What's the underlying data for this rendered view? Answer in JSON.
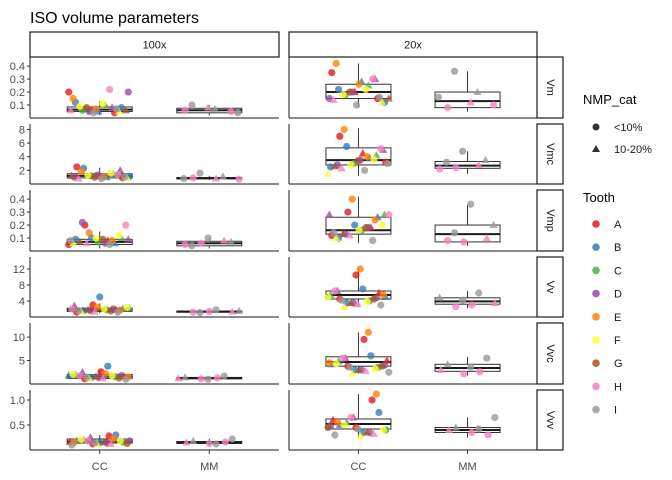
{
  "chart_data": {
    "type": "box",
    "title": "ISO volume parameters",
    "xlabel": "",
    "ylabel": "",
    "categories": [
      "CC",
      "MM"
    ],
    "col_facets": [
      "100x",
      "20x"
    ],
    "row_facets": [
      {
        "label": "Vm",
        "ylim": [
          0,
          0.47
        ],
        "ticks": [
          0.1,
          0.2,
          0.3,
          0.4
        ],
        "tick_labels": [
          "0.1",
          "0.2",
          "0.3",
          "0.4"
        ]
      },
      {
        "label": "Vmc",
        "ylim": [
          0,
          8.8
        ],
        "ticks": [
          2,
          4,
          6,
          8
        ],
        "tick_labels": [
          "2",
          "4",
          "6",
          "8"
        ]
      },
      {
        "label": "Vmp",
        "ylim": [
          0,
          0.47
        ],
        "ticks": [
          0.1,
          0.2,
          0.3,
          0.4
        ],
        "tick_labels": [
          "0.1",
          "0.2",
          "0.3",
          "0.4"
        ]
      },
      {
        "label": "Vv",
        "ylim": [
          0,
          15
        ],
        "ticks": [
          4,
          8,
          12
        ],
        "tick_labels": [
          "4",
          "8",
          "12"
        ]
      },
      {
        "label": "Vvc",
        "ylim": [
          0,
          13
        ],
        "ticks": [
          5,
          10
        ],
        "tick_labels": [
          "5",
          "10"
        ]
      },
      {
        "label": "Vvv",
        "ylim": [
          0,
          1.2
        ],
        "ticks": [
          0.5,
          1.0
        ],
        "tick_labels": [
          "0.5",
          "1.0"
        ]
      }
    ],
    "boxes": [
      {
        "row": "Vm",
        "col": "100x",
        "cat": "CC",
        "q1": 0.05,
        "median": 0.065,
        "q3": 0.085,
        "lo": 0.02,
        "hi": 0.13
      },
      {
        "row": "Vm",
        "col": "100x",
        "cat": "MM",
        "q1": 0.04,
        "median": 0.06,
        "q3": 0.075,
        "lo": 0.02,
        "hi": 0.1
      },
      {
        "row": "Vm",
        "col": "20x",
        "cat": "CC",
        "q1": 0.15,
        "median": 0.2,
        "q3": 0.26,
        "lo": 0.08,
        "hi": 0.42
      },
      {
        "row": "Vm",
        "col": "20x",
        "cat": "MM",
        "q1": 0.08,
        "median": 0.13,
        "q3": 0.2,
        "lo": 0.05,
        "hi": 0.36
      },
      {
        "row": "Vmc",
        "col": "100x",
        "cat": "CC",
        "q1": 0.9,
        "median": 1.2,
        "q3": 1.5,
        "lo": 0.6,
        "hi": 2.4
      },
      {
        "row": "Vmc",
        "col": "100x",
        "cat": "MM",
        "q1": 0.75,
        "median": 0.85,
        "q3": 0.95,
        "lo": 0.6,
        "hi": 1.2
      },
      {
        "row": "Vmc",
        "col": "20x",
        "cat": "CC",
        "q1": 2.8,
        "median": 3.5,
        "q3": 5.3,
        "lo": 1.2,
        "hi": 8.2
      },
      {
        "row": "Vmc",
        "col": "20x",
        "cat": "MM",
        "q1": 2.3,
        "median": 2.7,
        "q3": 3.3,
        "lo": 1.5,
        "hi": 4.8
      },
      {
        "row": "Vmp",
        "col": "100x",
        "cat": "CC",
        "q1": 0.05,
        "median": 0.07,
        "q3": 0.09,
        "lo": 0.02,
        "hi": 0.15
      },
      {
        "row": "Vmp",
        "col": "100x",
        "cat": "MM",
        "q1": 0.04,
        "median": 0.06,
        "q3": 0.075,
        "lo": 0.02,
        "hi": 0.1
      },
      {
        "row": "Vmp",
        "col": "20x",
        "cat": "CC",
        "q1": 0.13,
        "median": 0.16,
        "q3": 0.26,
        "lo": 0.06,
        "hi": 0.42
      },
      {
        "row": "Vmp",
        "col": "20x",
        "cat": "MM",
        "q1": 0.07,
        "median": 0.13,
        "q3": 0.2,
        "lo": 0.04,
        "hi": 0.36
      },
      {
        "row": "Vv",
        "col": "100x",
        "cat": "CC",
        "q1": 1.4,
        "median": 1.8,
        "q3": 2.2,
        "lo": 0.9,
        "hi": 3.4
      },
      {
        "row": "Vv",
        "col": "100x",
        "cat": "MM",
        "q1": 1.2,
        "median": 1.35,
        "q3": 1.5,
        "lo": 0.9,
        "hi": 1.8
      },
      {
        "row": "Vv",
        "col": "20x",
        "cat": "CC",
        "q1": 4.5,
        "median": 5.5,
        "q3": 6.5,
        "lo": 2.5,
        "hi": 12.0
      },
      {
        "row": "Vv",
        "col": "20x",
        "cat": "MM",
        "q1": 3.2,
        "median": 3.9,
        "q3": 4.8,
        "lo": 2.2,
        "hi": 6.5
      },
      {
        "row": "Vvc",
        "col": "100x",
        "cat": "CC",
        "q1": 1.2,
        "median": 1.6,
        "q3": 2.0,
        "lo": 0.8,
        "hi": 3.0
      },
      {
        "row": "Vvc",
        "col": "100x",
        "cat": "MM",
        "q1": 1.1,
        "median": 1.25,
        "q3": 1.4,
        "lo": 0.8,
        "hi": 1.7
      },
      {
        "row": "Vvc",
        "col": "20x",
        "cat": "CC",
        "q1": 3.8,
        "median": 4.7,
        "q3": 5.8,
        "lo": 2.2,
        "hi": 11.0
      },
      {
        "row": "Vvc",
        "col": "20x",
        "cat": "MM",
        "q1": 2.7,
        "median": 3.4,
        "q3": 4.2,
        "lo": 1.8,
        "hi": 5.8
      },
      {
        "row": "Vvv",
        "col": "100x",
        "cat": "CC",
        "q1": 0.14,
        "median": 0.17,
        "q3": 0.22,
        "lo": 0.08,
        "hi": 0.3
      },
      {
        "row": "Vvv",
        "col": "100x",
        "cat": "MM",
        "q1": 0.13,
        "median": 0.15,
        "q3": 0.17,
        "lo": 0.08,
        "hi": 0.22
      },
      {
        "row": "Vvv",
        "col": "20x",
        "cat": "CC",
        "q1": 0.42,
        "median": 0.52,
        "q3": 0.62,
        "lo": 0.25,
        "hi": 1.12
      },
      {
        "row": "Vvv",
        "col": "20x",
        "cat": "MM",
        "q1": 0.35,
        "median": 0.4,
        "q3": 0.45,
        "lo": 0.25,
        "hi": 0.65
      }
    ],
    "points_by_tooth": {
      "CC": {
        "100x": {
          "Vm": {
            "A": [
              0.2,
              0.06,
              0.04
            ],
            "B": [
              0.12,
              0.05,
              0.08
            ],
            "C": [
              0.06,
              0.1
            ],
            "D": [
              0.2,
              0.05,
              0.08
            ],
            "E": [
              0.15,
              0.07
            ],
            "F": [
              0.05,
              0.09,
              0.11
            ],
            "G": [
              0.06,
              0.08
            ],
            "H": [
              0.22,
              0.06
            ],
            "I": [
              0.04,
              0.07
            ]
          },
          "Vmc": {
            "A": [
              2.5,
              1.2,
              0.9
            ],
            "B": [
              2.3,
              1.0,
              1.1
            ],
            "C": [
              1.2,
              1.5
            ],
            "D": [
              1.0,
              1.3,
              2.0
            ],
            "E": [
              1.8,
              1.1
            ],
            "F": [
              0.9,
              1.3,
              1.6
            ],
            "G": [
              1.2,
              1.0
            ],
            "H": [
              1.4,
              0.8
            ],
            "I": [
              0.8,
              1.0
            ]
          },
          "Vmp": {
            "A": [
              0.2,
              0.08,
              0.05
            ],
            "B": [
              0.1,
              0.06,
              0.09
            ],
            "C": [
              0.07,
              0.1
            ],
            "D": [
              0.22,
              0.06,
              0.09
            ],
            "E": [
              0.14,
              0.08
            ],
            "F": [
              0.06,
              0.1,
              0.12
            ],
            "G": [
              0.07,
              0.09
            ],
            "H": [
              0.2,
              0.06
            ],
            "I": [
              0.05,
              0.08
            ]
          },
          "Vv": {
            "A": [
              3.0,
              1.8,
              1.2
            ],
            "B": [
              5.0,
              2.0,
              1.6
            ],
            "C": [
              1.8,
              2.2
            ],
            "D": [
              1.6,
              2.0,
              2.8
            ],
            "E": [
              2.5,
              1.7
            ],
            "F": [
              1.4,
              2.0,
              2.4
            ],
            "G": [
              1.8,
              1.5
            ],
            "H": [
              2.0,
              1.3
            ],
            "I": [
              1.2,
              1.6
            ]
          },
          "Vvc": {
            "A": [
              2.6,
              1.6,
              1.1
            ],
            "B": [
              3.8,
              1.8,
              1.4
            ],
            "C": [
              1.6,
              2.0
            ],
            "D": [
              1.4,
              1.8,
              2.5
            ],
            "E": [
              2.2,
              1.5
            ],
            "F": [
              1.2,
              1.8,
              2.1
            ],
            "G": [
              1.6,
              1.3
            ],
            "H": [
              1.8,
              1.2
            ],
            "I": [
              1.0,
              1.4
            ]
          },
          "Vvv": {
            "A": [
              0.28,
              0.16,
              0.12
            ],
            "B": [
              0.3,
              0.18,
              0.14
            ],
            "C": [
              0.16,
              0.2
            ],
            "D": [
              0.14,
              0.18,
              0.25
            ],
            "E": [
              0.22,
              0.15
            ],
            "F": [
              0.12,
              0.18,
              0.21
            ],
            "G": [
              0.16,
              0.13
            ],
            "H": [
              0.18,
              0.12
            ],
            "I": [
              0.1,
              0.14
            ]
          }
        },
        "20x": {
          "Vm": {
            "A": [
              0.35,
              0.2,
              0.15
            ],
            "B": [
              0.22,
              0.28,
              0.12
            ],
            "C": [
              0.18,
              0.25
            ],
            "D": [
              0.15,
              0.2,
              0.3
            ],
            "E": [
              0.42,
              0.26
            ],
            "F": [
              0.12,
              0.18,
              0.22
            ],
            "G": [
              0.15,
              0.2
            ],
            "H": [
              0.3,
              0.14
            ],
            "I": [
              0.1,
              0.16
            ]
          },
          "Vmc": {
            "A": [
              7.0,
              4.5,
              3.2
            ],
            "B": [
              5.5,
              3.8,
              2.5
            ],
            "C": [
              3.0,
              4.2
            ],
            "D": [
              2.8,
              3.5,
              5.0
            ],
            "E": [
              8.0,
              4.0
            ],
            "F": [
              1.5,
              2.8,
              3.6
            ],
            "G": [
              2.6,
              3.4
            ],
            "H": [
              5.2,
              2.3
            ],
            "I": [
              2.0,
              3.0
            ]
          },
          "Vmp": {
            "A": [
              0.3,
              0.18,
              0.12
            ],
            "B": [
              0.2,
              0.26,
              0.1
            ],
            "C": [
              0.16,
              0.28
            ],
            "D": [
              0.13,
              0.18,
              0.28
            ],
            "E": [
              0.4,
              0.24
            ],
            "F": [
              0.1,
              0.16,
              0.2
            ],
            "G": [
              0.13,
              0.18
            ],
            "H": [
              0.28,
              0.12
            ],
            "I": [
              0.08,
              0.14
            ]
          },
          "Vv": {
            "A": [
              10.5,
              6.0,
              4.5
            ],
            "B": [
              7.0,
              5.0,
              3.5
            ],
            "C": [
              4.0,
              5.5
            ],
            "D": [
              3.5,
              4.8,
              6.5
            ],
            "E": [
              12.0,
              5.5
            ],
            "F": [
              2.5,
              3.8,
              5.0
            ],
            "G": [
              3.5,
              4.5
            ],
            "H": [
              6.5,
              3.2
            ],
            "I": [
              3.0,
              4.2
            ]
          },
          "Vvc": {
            "A": [
              9.5,
              5.0,
              3.8
            ],
            "B": [
              6.0,
              4.2,
              3.0
            ],
            "C": [
              3.5,
              4.8
            ],
            "D": [
              3.0,
              4.0,
              5.5
            ],
            "E": [
              11.0,
              4.5
            ],
            "F": [
              2.2,
              3.2,
              4.3
            ],
            "G": [
              3.0,
              3.8
            ],
            "H": [
              5.5,
              2.8
            ],
            "I": [
              2.5,
              3.6
            ]
          },
          "Vvv": {
            "A": [
              1.0,
              0.6,
              0.45
            ],
            "B": [
              0.75,
              0.5,
              0.35
            ],
            "C": [
              0.4,
              0.55
            ],
            "D": [
              0.35,
              0.48,
              0.65
            ],
            "E": [
              1.12,
              0.55
            ],
            "F": [
              0.28,
              0.4,
              0.5
            ],
            "G": [
              0.35,
              0.45
            ],
            "H": [
              0.65,
              0.32
            ],
            "I": [
              0.3,
              0.42
            ]
          }
        }
      },
      "MM": {
        "100x": {
          "Vm": {
            "H": [
              0.06,
              0.08,
              0.05
            ],
            "I": [
              0.1,
              0.07,
              0.04
            ]
          },
          "Vmc": {
            "H": [
              0.9,
              0.8,
              0.7
            ],
            "I": [
              1.6,
              1.1,
              0.8
            ]
          },
          "Vmp": {
            "H": [
              0.06,
              0.08,
              0.05
            ],
            "I": [
              0.1,
              0.07,
              0.04
            ]
          },
          "Vv": {
            "H": [
              1.4,
              1.3,
              1.2
            ],
            "I": [
              1.8,
              1.5,
              1.1
            ]
          },
          "Vvc": {
            "H": [
              1.3,
              1.2,
              1.1
            ],
            "I": [
              1.7,
              1.4,
              1.0
            ]
          },
          "Vvv": {
            "H": [
              0.16,
              0.15,
              0.13
            ],
            "I": [
              0.22,
              0.18,
              0.12
            ]
          }
        },
        "20x": {
          "Vm": {
            "H": [
              0.08,
              0.12,
              0.1
            ],
            "I": [
              0.36,
              0.2,
              0.16
            ]
          },
          "Vmc": {
            "H": [
              2.4,
              2.8,
              2.2
            ],
            "I": [
              4.8,
              3.5,
              3.2
            ]
          },
          "Vmp": {
            "H": [
              0.07,
              0.1,
              0.08
            ],
            "I": [
              0.36,
              0.2,
              0.14
            ]
          },
          "Vv": {
            "H": [
              3.0,
              3.5,
              2.6
            ],
            "I": [
              6.0,
              4.8,
              4.2
            ]
          },
          "Vvc": {
            "H": [
              2.6,
              3.0,
              2.2
            ],
            "I": [
              5.5,
              4.2,
              3.6
            ]
          },
          "Vvv": {
            "H": [
              0.3,
              0.4,
              0.35
            ],
            "I": [
              0.65,
              0.45,
              0.42
            ]
          }
        }
      }
    },
    "legend": {
      "position": "right",
      "shape_title": "NMP_cat",
      "shape_items": [
        {
          "label": "<10%",
          "shape": "circle"
        },
        {
          "label": "10-20%",
          "shape": "triangle"
        }
      ],
      "color_title": "Tooth",
      "color_items": [
        {
          "label": "A",
          "color": "#e41a1c"
        },
        {
          "label": "B",
          "color": "#377eb8"
        },
        {
          "label": "C",
          "color": "#4daf4a"
        },
        {
          "label": "D",
          "color": "#984ea3"
        },
        {
          "label": "E",
          "color": "#ff7f00"
        },
        {
          "label": "F",
          "color": "#ffff33"
        },
        {
          "label": "G",
          "color": "#a65628"
        },
        {
          "label": "H",
          "color": "#f781bf"
        },
        {
          "label": "I",
          "color": "#999999"
        }
      ]
    },
    "grid": false
  }
}
